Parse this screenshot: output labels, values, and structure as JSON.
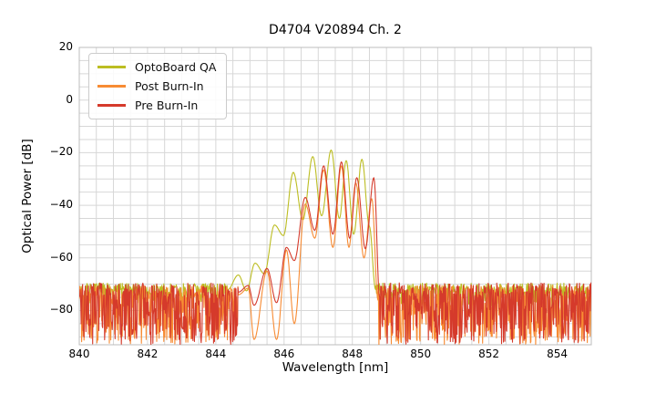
{
  "chart_data": {
    "type": "line",
    "title": "D4704 V20894 Ch. 2",
    "xlabel": "Wavelength [nm]",
    "ylabel": "Optical Power [dB]",
    "xlim": [
      840,
      855
    ],
    "ylim": [
      -93,
      20
    ],
    "xticks": [
      840,
      842,
      844,
      846,
      848,
      850,
      852,
      854
    ],
    "xtick_labels": [
      "840",
      "842",
      "844",
      "846",
      "848",
      "850",
      "852",
      "854"
    ],
    "yticks": [
      20,
      0,
      -20,
      -40,
      -60,
      -80
    ],
    "ytick_labels": [
      "20",
      "0",
      "−20",
      "−40",
      "−60",
      "−80"
    ],
    "grid": true,
    "minor_x_step": 0.5,
    "minor_y_step": 5,
    "grid_color": "#d7d7d7",
    "border_color": "#bcbcbc",
    "legend_position": "upper left",
    "series": [
      {
        "name": "OptoBoard QA",
        "color": "#bcbd22",
        "seed": 7,
        "noise": {
          "top": -71.8,
          "jitter": 2.2,
          "deep_prob": 0.32,
          "depth": 6.5
        },
        "fringe": [
          [
            844.35,
            -72
          ],
          [
            844.66,
            -66.5
          ],
          [
            844.9,
            -72.5
          ],
          [
            845.15,
            -62
          ],
          [
            845.42,
            -66
          ],
          [
            845.72,
            -47.5
          ],
          [
            845.98,
            -51.5
          ],
          [
            846.27,
            -27.5
          ],
          [
            846.55,
            -45.5
          ],
          [
            846.84,
            -21.5
          ],
          [
            847.1,
            -44
          ],
          [
            847.38,
            -19
          ],
          [
            847.62,
            -45
          ],
          [
            847.82,
            -23
          ],
          [
            848.04,
            -51
          ],
          [
            848.28,
            -22.5
          ],
          [
            848.5,
            -48
          ],
          [
            848.68,
            -72
          ]
        ]
      },
      {
        "name": "Post Burn-In",
        "color": "#f78b33",
        "seed": 12,
        "noise": {
          "top": -73,
          "jitter": 2.5,
          "deep_prob": 0.55,
          "depth": 20
        },
        "fringe": [
          [
            844.66,
            -74
          ],
          [
            844.95,
            -71.5
          ],
          [
            845.12,
            -91
          ],
          [
            845.5,
            -65
          ],
          [
            845.78,
            -91
          ],
          [
            846.07,
            -57
          ],
          [
            846.3,
            -85
          ],
          [
            846.62,
            -39.5
          ],
          [
            846.9,
            -52.5
          ],
          [
            847.16,
            -26.5
          ],
          [
            847.43,
            -56
          ],
          [
            847.68,
            -25
          ],
          [
            847.9,
            -56
          ],
          [
            848.1,
            -31.5
          ],
          [
            848.34,
            -60
          ],
          [
            848.57,
            -37.5
          ],
          [
            848.75,
            -76
          ]
        ]
      },
      {
        "name": "Pre Burn-In",
        "color": "#d53a2b",
        "seed": 3,
        "noise": {
          "top": -72,
          "jitter": 2.5,
          "deep_prob": 0.6,
          "depth": 21
        },
        "fringe": [
          [
            844.66,
            -73
          ],
          [
            844.95,
            -70.5
          ],
          [
            845.12,
            -78
          ],
          [
            845.5,
            -64
          ],
          [
            845.78,
            -77
          ],
          [
            846.07,
            -56
          ],
          [
            846.3,
            -61
          ],
          [
            846.62,
            -37
          ],
          [
            846.9,
            -49.5
          ],
          [
            847.16,
            -25
          ],
          [
            847.43,
            -51
          ],
          [
            847.68,
            -23.5
          ],
          [
            847.92,
            -52.5
          ],
          [
            848.13,
            -29.5
          ],
          [
            848.38,
            -56.5
          ],
          [
            848.63,
            -29.5
          ],
          [
            848.8,
            -75
          ]
        ]
      }
    ]
  }
}
